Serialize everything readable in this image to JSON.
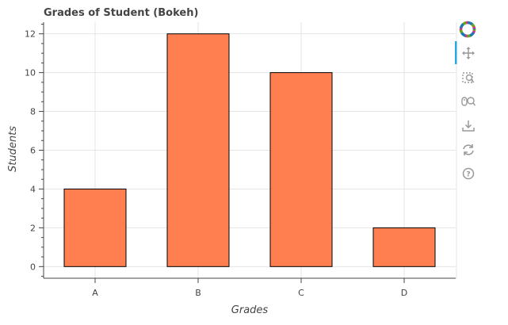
{
  "chart_data": {
    "type": "bar",
    "title": "Grades of Student (Bokeh)",
    "xlabel": "Grades",
    "ylabel": "Students",
    "categories": [
      "A",
      "B",
      "C",
      "D"
    ],
    "values": [
      4,
      12,
      10,
      2
    ],
    "ylim": [
      -0.6,
      12.6
    ],
    "y_ticks": [
      0,
      2,
      4,
      6,
      8,
      10,
      12
    ],
    "grid": true,
    "colors": {
      "bar_fill": "#ff7f50",
      "bar_stroke": "#000000",
      "grid": "#e5e5e5",
      "axis": "#444444",
      "text": "#444444"
    }
  },
  "toolbar": {
    "logo": "bokeh-logo-icon",
    "tools": [
      {
        "icon": "pan-icon",
        "active": true
      },
      {
        "icon": "box-zoom-icon",
        "active": false
      },
      {
        "icon": "wheel-zoom-icon",
        "active": false
      },
      {
        "icon": "save-icon",
        "active": false
      },
      {
        "icon": "reset-icon",
        "active": false
      },
      {
        "icon": "help-icon",
        "active": false
      }
    ],
    "accent": "#26aae1"
  }
}
